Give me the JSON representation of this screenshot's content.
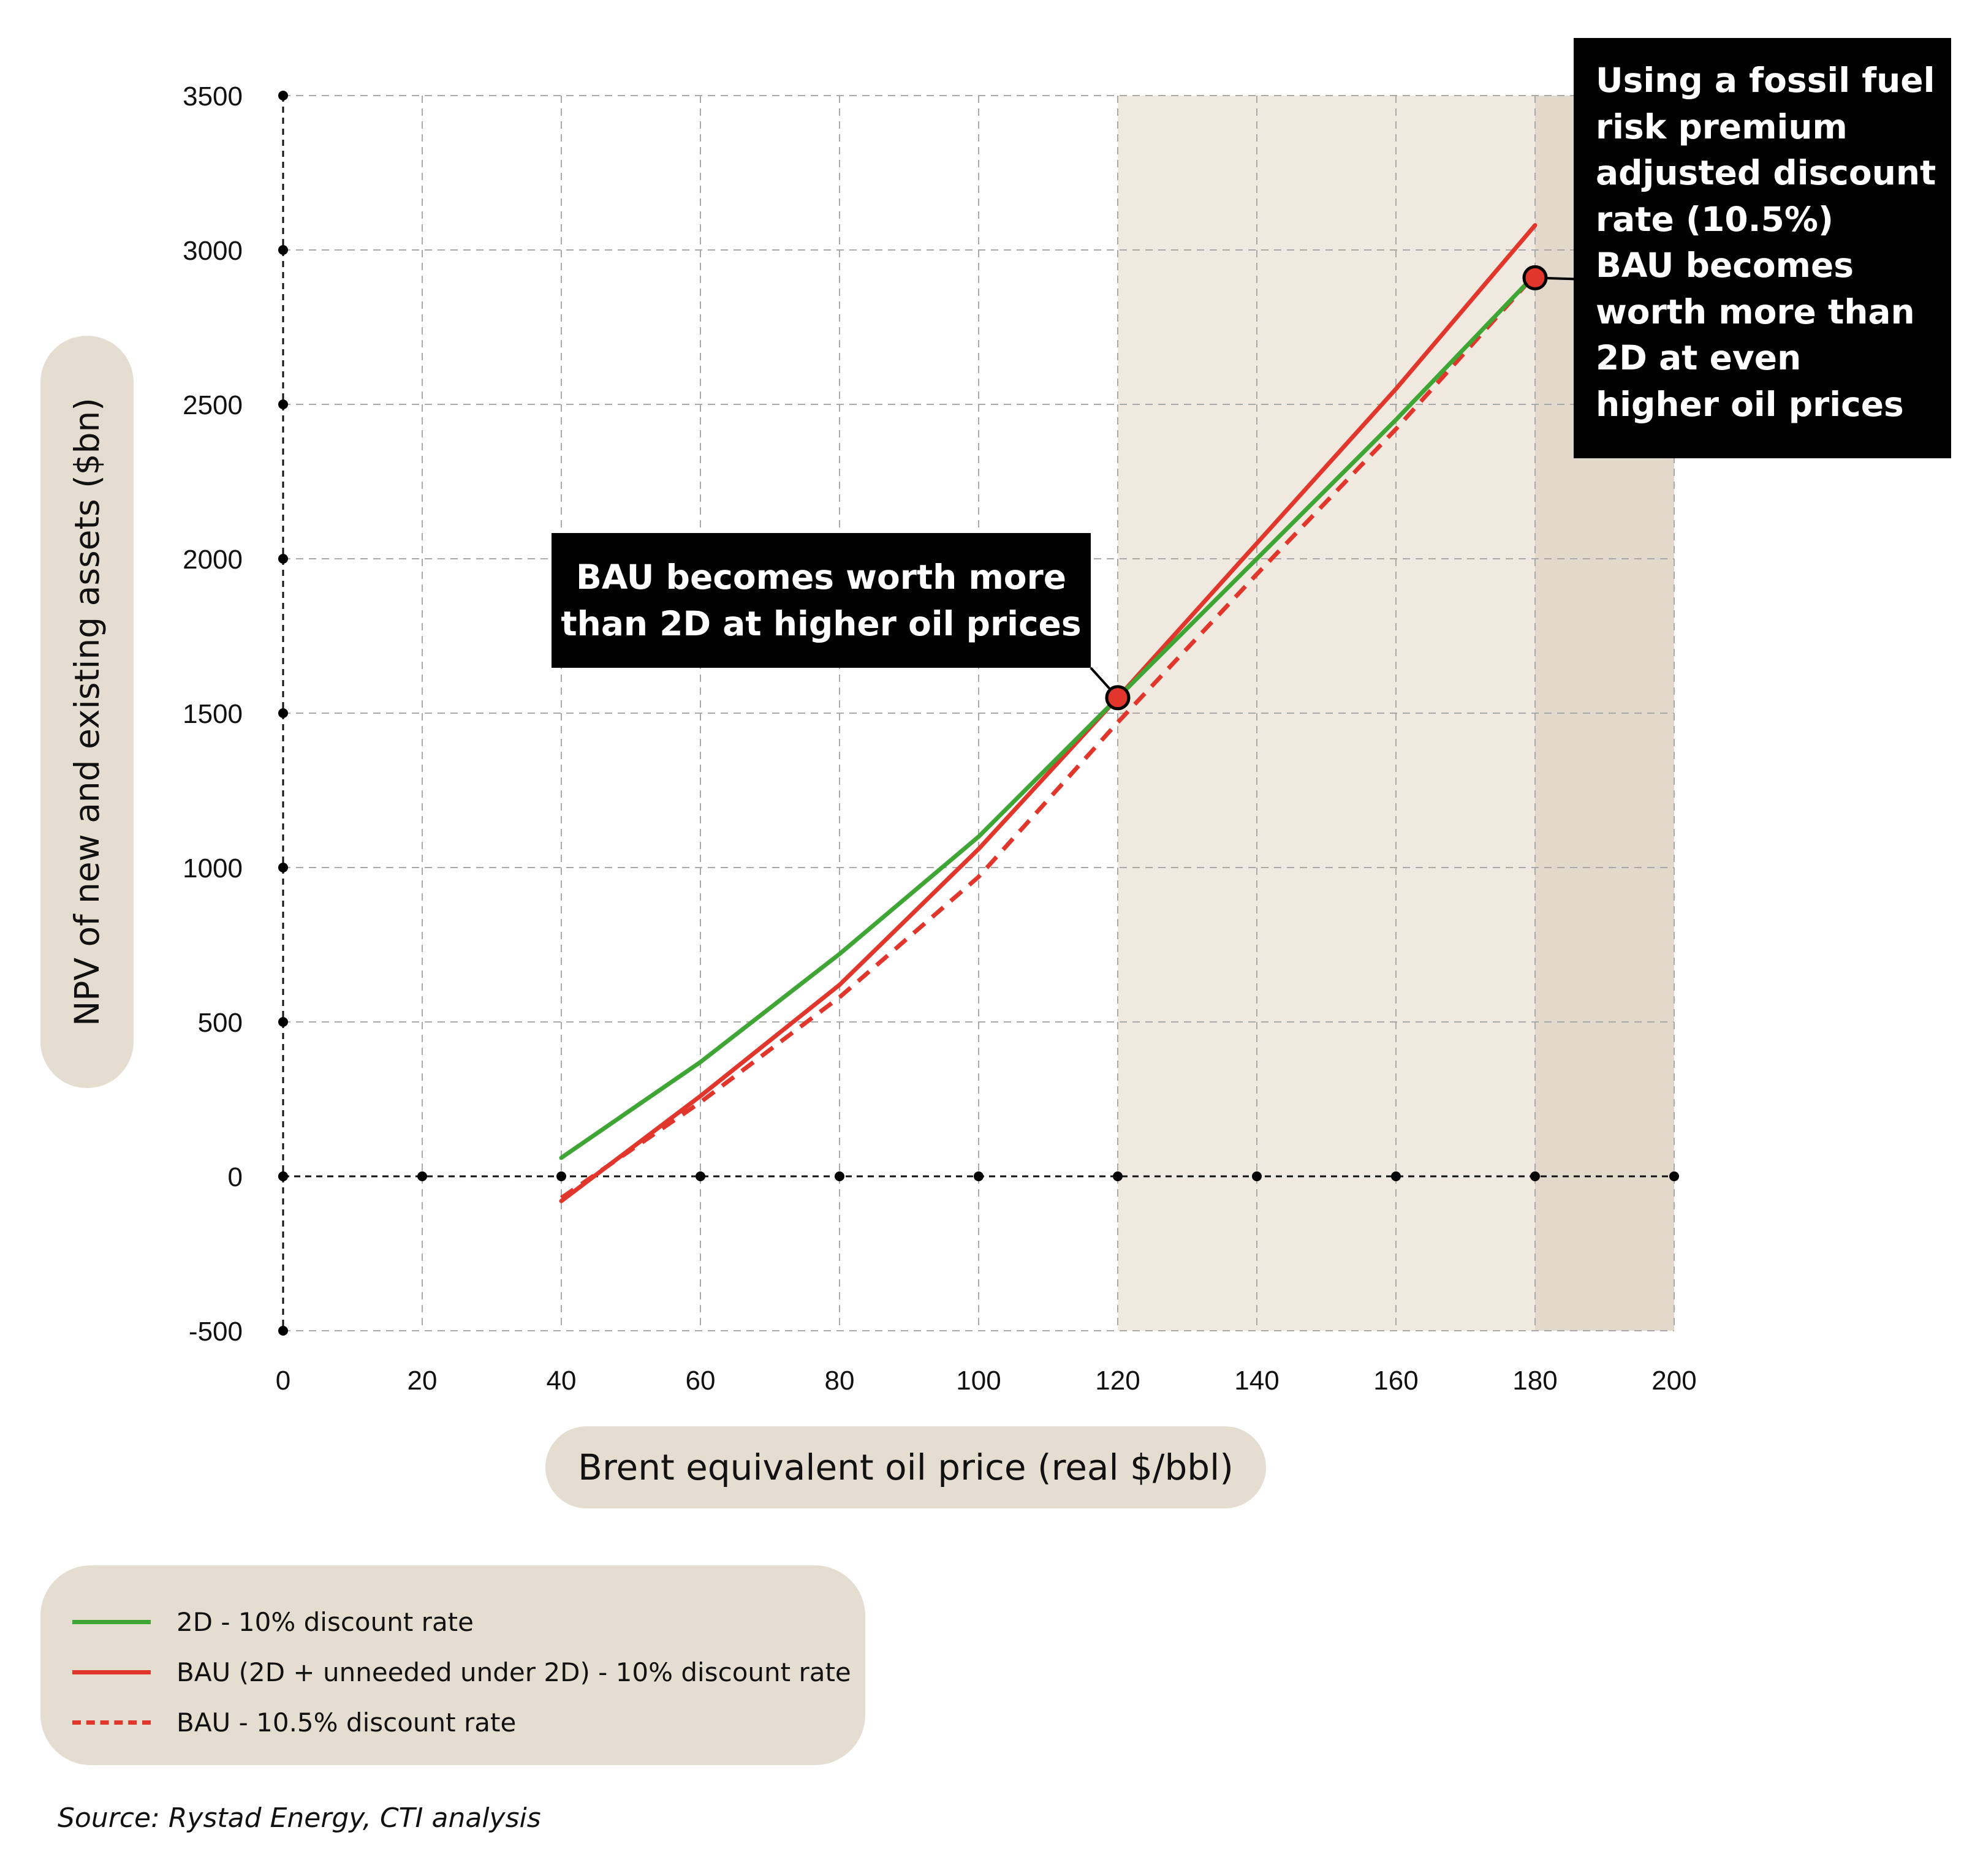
{
  "chart_data": {
    "type": "line",
    "xlabel": "Brent equivalent oil price (real $/bbl)",
    "ylabel": "NPV of new and existing assets ($bn)",
    "xlim": [
      0,
      200
    ],
    "ylim": [
      -500,
      3500
    ],
    "x_ticks": [
      0,
      20,
      40,
      60,
      80,
      100,
      120,
      140,
      160,
      180,
      200
    ],
    "y_ticks": [
      -500,
      0,
      500,
      1000,
      1500,
      2000,
      2500,
      3000,
      3500
    ],
    "shaded_regions": [
      {
        "x_from": 120,
        "x_to": 180,
        "color": "#efe9e0"
      },
      {
        "x_from": 180,
        "x_to": 200,
        "color": "#e2d9cb"
      }
    ],
    "series": [
      {
        "name": "2D - 10% discount rate",
        "color": "#3fa535",
        "style": "solid",
        "x": [
          40,
          60,
          80,
          100,
          120,
          140,
          160,
          180
        ],
        "values": [
          60,
          370,
          720,
          1100,
          1550,
          2000,
          2450,
          2920
        ]
      },
      {
        "name": "BAU (2D + unneeded under 2D) - 10% discount rate",
        "color": "#e0362c",
        "style": "solid",
        "x": [
          40,
          60,
          80,
          100,
          120,
          140,
          160,
          180
        ],
        "values": [
          -80,
          260,
          620,
          1060,
          1550,
          2050,
          2550,
          3080
        ]
      },
      {
        "name": "BAU - 10.5% discount rate",
        "color": "#e0362c",
        "style": "dashed",
        "x": [
          40,
          60,
          80,
          100,
          120,
          140,
          160,
          180
        ],
        "values": [
          -70,
          240,
          580,
          970,
          1470,
          1950,
          2420,
          2920
        ]
      }
    ],
    "highlight_points": [
      {
        "x": 120,
        "y": 1550
      },
      {
        "x": 180,
        "y": 2910
      }
    ]
  },
  "annotations": {
    "callout_1": [
      "BAU becomes worth more",
      "than 2D at higher oil prices"
    ],
    "callout_2": [
      "Using a fossil fuel",
      "risk premium",
      "adjusted discount",
      "rate (10.5%)",
      "BAU becomes",
      "worth more than",
      "2D at even",
      "higher oil prices"
    ]
  },
  "legend": [
    {
      "label": "2D - 10% discount rate",
      "color": "#3fa535",
      "style": "solid"
    },
    {
      "label": "BAU (2D + unneeded under 2D) - 10% discount rate",
      "color": "#e0362c",
      "style": "solid"
    },
    {
      "label": "BAU - 10.5% discount rate",
      "color": "#e0362c",
      "style": "dashed"
    }
  ],
  "source": "Source: Rystad Energy, CTI analysis"
}
